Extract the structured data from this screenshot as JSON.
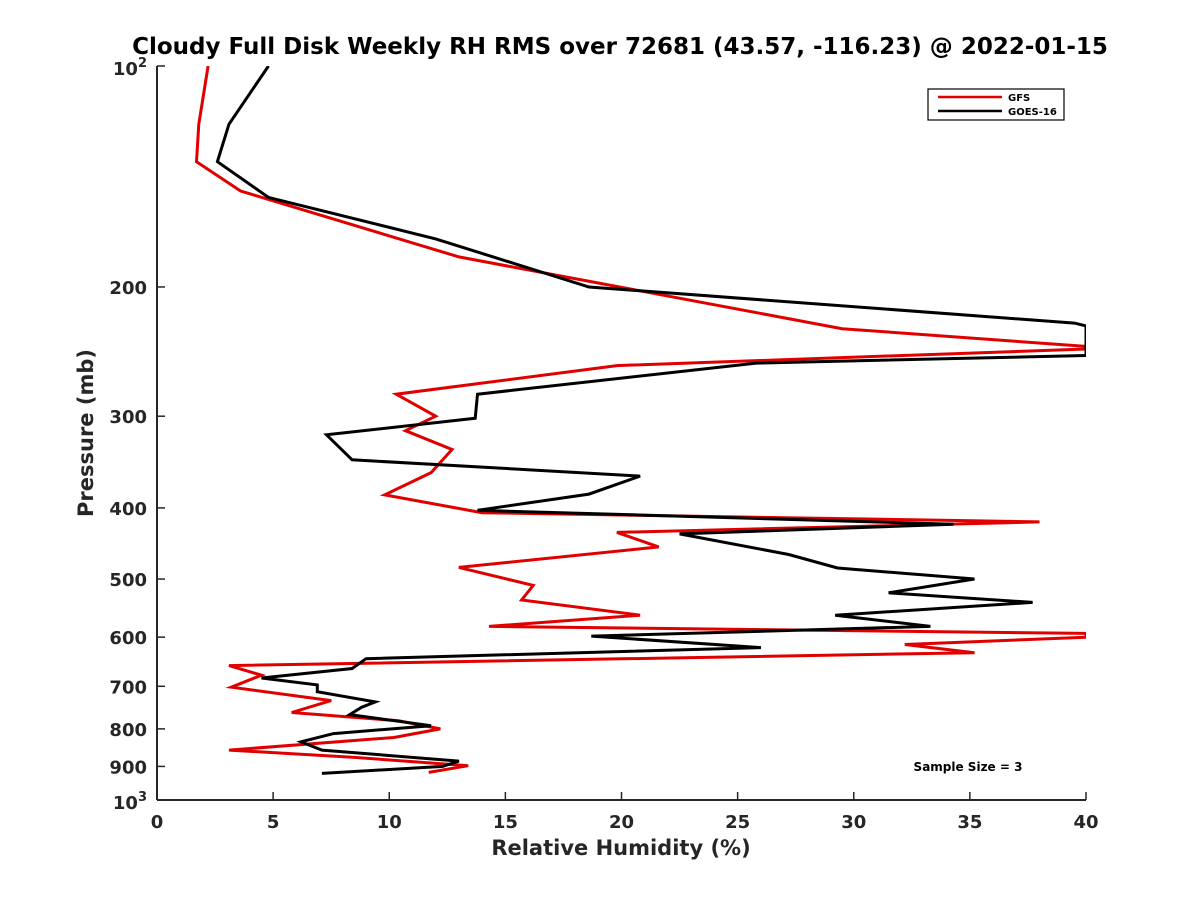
{
  "chart_data": {
    "type": "line",
    "title": "Cloudy Full Disk Weekly RH RMS over 72681 (43.57, -116.23) @ 2022-01-15",
    "xlabel": "Relative Humidity (%)",
    "ylabel": "Pressure (mb)",
    "xlim": [
      0,
      40
    ],
    "ylim": [
      100,
      1000
    ],
    "y_scale": "log",
    "y_reversed": true,
    "x_ticks": [
      "0",
      "5",
      "10",
      "15",
      "20",
      "25",
      "30",
      "35",
      "40"
    ],
    "y_tick_values": [
      200,
      300,
      400,
      500,
      600,
      700,
      800,
      900
    ],
    "y_ticks": [
      "200",
      "300",
      "400",
      "500",
      "600",
      "700",
      "800",
      "900"
    ],
    "y_end_labels": {
      "top_base": "10",
      "top_exp": "2",
      "bottom_base": "10",
      "bottom_exp": "3"
    },
    "legend_position": "top-right",
    "annotation": "Sample Size = 3",
    "series": [
      {
        "name": "GFS",
        "color": "#e00000",
        "x": [
          2.2,
          1.8,
          1.7,
          3.6,
          13.0,
          29.5,
          40.0,
          40.0,
          19.8,
          10.3,
          12.0,
          10.7,
          12.7,
          11.8,
          9.8,
          14.0,
          38.0,
          19.8,
          21.6,
          13.0,
          16.2,
          15.7,
          20.8,
          14.3,
          40.0,
          40.0,
          32.2,
          35.2,
          3.1,
          4.5,
          3.2,
          7.5,
          5.8,
          10.4,
          12.2,
          10.2,
          3.1,
          8.5,
          13.4,
          11.7
        ],
        "y": [
          100,
          120,
          135,
          148,
          182,
          228,
          241,
          243,
          256,
          280,
          300,
          314,
          333,
          358,
          384,
          406,
          418,
          432,
          452,
          482,
          510,
          534,
          560,
          580,
          593,
          600,
          614,
          630,
          656,
          676,
          702,
          732,
          760,
          780,
          800,
          822,
          855,
          875,
          898,
          917
        ]
      },
      {
        "name": "GOES-16",
        "color": "#000000",
        "x": [
          4.8,
          3.1,
          2.6,
          4.8,
          12.0,
          18.6,
          39.5,
          40.0,
          40.0,
          25.8,
          13.8,
          13.7,
          7.3,
          8.4,
          20.8,
          18.6,
          13.8,
          34.3,
          22.5,
          27.2,
          29.3,
          35.2,
          31.5,
          37.7,
          29.2,
          33.3,
          18.7,
          26.0,
          9.0,
          8.4,
          4.5,
          6.9,
          6.9,
          9.4,
          8.8,
          8.3,
          11.8,
          7.6,
          6.2,
          7.1,
          13.0,
          12.3,
          7.1
        ],
        "y": [
          100,
          120,
          135,
          151,
          172,
          200,
          224,
          226,
          248,
          254,
          280,
          302,
          318,
          344,
          362,
          383,
          403,
          421,
          434,
          463,
          483,
          500,
          522,
          538,
          560,
          580,
          598,
          620,
          642,
          662,
          682,
          697,
          712,
          735,
          748,
          765,
          792,
          812,
          833,
          855,
          885,
          900,
          920
        ]
      }
    ]
  }
}
